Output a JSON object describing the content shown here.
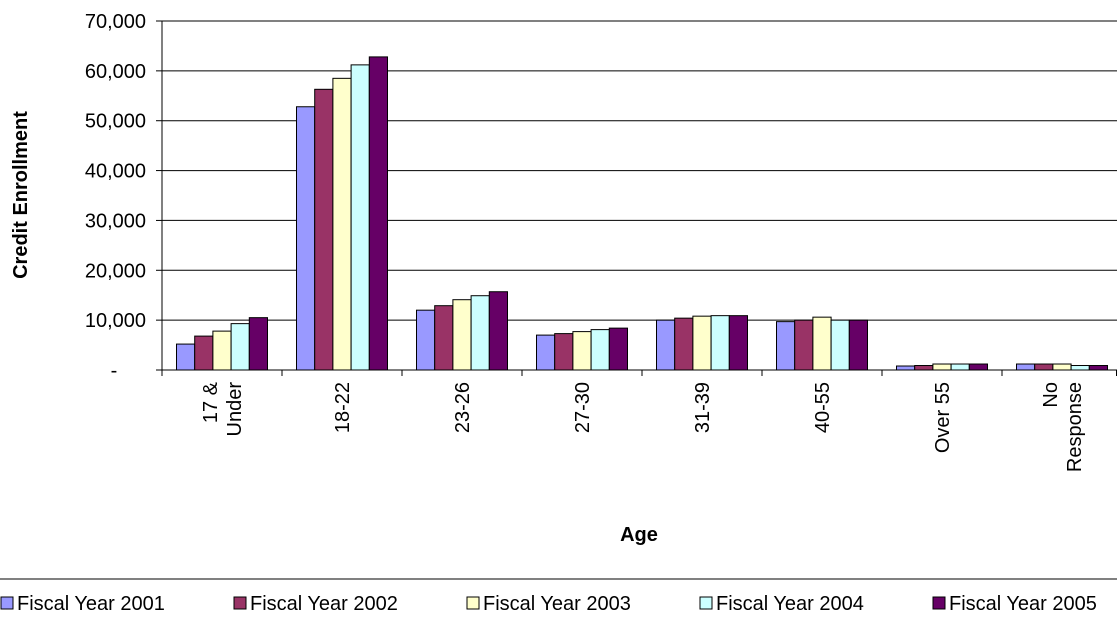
{
  "chart_data": {
    "type": "bar",
    "xlabel": "Age",
    "ylabel": "Credit Enrollment",
    "ylim": [
      0,
      70000
    ],
    "yticks": [
      {
        "value": 0,
        "label": "-"
      },
      {
        "value": 10000,
        "label": "10,000"
      },
      {
        "value": 20000,
        "label": "20,000"
      },
      {
        "value": 30000,
        "label": "30,000"
      },
      {
        "value": 40000,
        "label": "40,000"
      },
      {
        "value": 50000,
        "label": "50,000"
      },
      {
        "value": 60000,
        "label": "60,000"
      },
      {
        "value": 70000,
        "label": "70,000"
      }
    ],
    "grid": true,
    "legend_position": "bottom",
    "categories": [
      [
        "17 &",
        "Under"
      ],
      [
        "18-22"
      ],
      [
        "23-26"
      ],
      [
        "27-30"
      ],
      [
        "31-39"
      ],
      [
        "40-55"
      ],
      [
        "Over 55"
      ],
      [
        "No",
        "Response"
      ]
    ],
    "series": [
      {
        "name": "Fiscal Year 2001",
        "color": "#9999FF",
        "values": [
          5200,
          52800,
          12000,
          7000,
          10000,
          9700,
          800,
          1200
        ]
      },
      {
        "name": "Fiscal Year 2002",
        "color": "#993366",
        "values": [
          6800,
          56300,
          12900,
          7300,
          10400,
          10000,
          900,
          1200
        ]
      },
      {
        "name": "Fiscal Year 2003",
        "color": "#FFFFCC",
        "values": [
          7800,
          58500,
          14100,
          7700,
          10800,
          10600,
          1200,
          1200
        ]
      },
      {
        "name": "Fiscal Year 2004",
        "color": "#CCFFFF",
        "values": [
          9300,
          61200,
          14900,
          8100,
          10900,
          10000,
          1200,
          900
        ]
      },
      {
        "name": "Fiscal Year 2005",
        "color": "#660066",
        "values": [
          10500,
          62800,
          15700,
          8400,
          10900,
          10000,
          1200,
          900
        ]
      }
    ]
  }
}
